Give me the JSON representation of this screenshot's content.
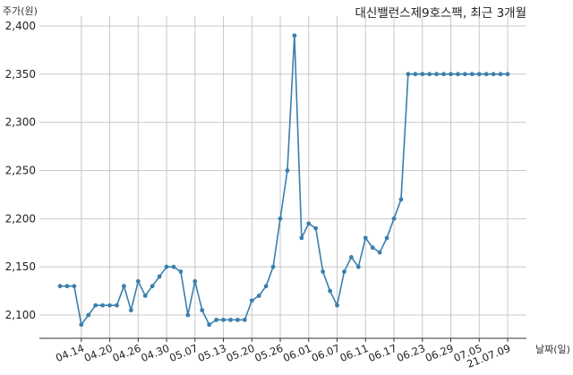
{
  "title": "대신밸런스제9호스팩, 최근 3개월",
  "y_unit_label": "주가(원)",
  "x_unit_label": "날짜(일)",
  "colors": {
    "line": "#3a7fad",
    "grid": "#c8c8c8",
    "axis": "#333333",
    "text": "#222222"
  },
  "chart_data": {
    "type": "line",
    "title": "대신밸런스제9호스팩, 최근 3개월",
    "xlabel": "날짜(일)",
    "ylabel": "주가(원)",
    "ylim": [
      2085,
      2400
    ],
    "y_ticks": [
      2100,
      2150,
      2200,
      2250,
      2300,
      2350,
      2400
    ],
    "y_tick_labels": [
      "2,100",
      "2,150",
      "2,200",
      "2,250",
      "2,300",
      "2,350",
      "2,400"
    ],
    "x_tick_labels": [
      "04.14",
      "04.20",
      "04.26",
      "04.30",
      "05.07",
      "05.13",
      "05.20",
      "05.26",
      "06.01",
      "06.07",
      "06.11",
      "06.17",
      "06.23",
      "06.29",
      "07.05",
      "21.07.09"
    ],
    "x_tick_index": [
      3,
      7,
      11,
      15,
      19,
      23,
      27,
      31,
      35,
      39,
      43,
      47,
      51,
      55,
      59,
      63
    ],
    "grid": true,
    "series": [
      {
        "values": [
          2130,
          2130,
          2130,
          2090,
          2100,
          2110,
          2110,
          2110,
          2110,
          2130,
          2105,
          2135,
          2120,
          2130,
          2140,
          2150,
          2150,
          2145,
          2100,
          2135,
          2105,
          2090,
          2095,
          2095,
          2095,
          2095,
          2095,
          2115,
          2120,
          2130,
          2150,
          2200,
          2250,
          2390,
          2180,
          2195,
          2190,
          2145,
          2125,
          2110,
          2145,
          2160,
          2150,
          2180,
          2170,
          2165,
          2180,
          2200,
          2220,
          2350,
          2350,
          2350,
          2350,
          2350,
          2350,
          2350,
          2350,
          2350,
          2350,
          2350,
          2350,
          2350,
          2350,
          2350
        ]
      }
    ]
  }
}
